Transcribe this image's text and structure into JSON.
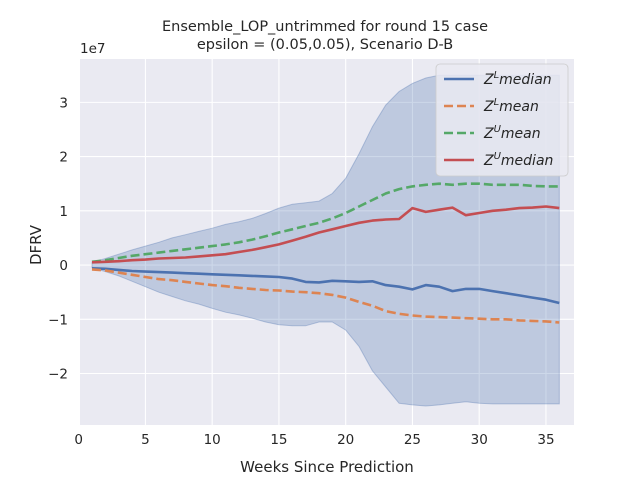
{
  "chart_data": {
    "type": "line",
    "title": "Ensemble_LOP_untrimmed for round 15 case",
    "subtitle": "epsilon = (0.05,0.05), Scenario D-B",
    "xlabel": "Weeks Since Prediction",
    "ylabel": "DFRV",
    "scale_label": "1e7",
    "xlim": [
      0.1,
      37.1
    ],
    "ylim": [
      -2.95,
      3.8
    ],
    "x_ticks": [
      0,
      5,
      10,
      15,
      20,
      25,
      30,
      35
    ],
    "y_ticks": [
      -2,
      -1,
      0,
      1,
      2,
      3
    ],
    "y_tick_labels": [
      "−2",
      "−1",
      "0",
      "1",
      "2",
      "3"
    ],
    "grid": true,
    "legend_position": "top-right",
    "x": [
      1,
      2,
      3,
      4,
      5,
      6,
      7,
      8,
      9,
      10,
      11,
      12,
      13,
      14,
      15,
      16,
      17,
      18,
      19,
      20,
      21,
      22,
      23,
      24,
      25,
      26,
      27,
      28,
      29,
      30,
      31,
      32,
      33,
      34,
      35,
      36
    ],
    "band": {
      "color": "#4c72b0",
      "upper": [
        0.05,
        0.12,
        0.2,
        0.28,
        0.35,
        0.42,
        0.5,
        0.56,
        0.62,
        0.68,
        0.75,
        0.8,
        0.86,
        0.95,
        1.05,
        1.12,
        1.15,
        1.18,
        1.32,
        1.6,
        2.05,
        2.55,
        2.95,
        3.2,
        3.35,
        3.45,
        3.5,
        3.5,
        3.5,
        3.5,
        3.5,
        3.5,
        3.5,
        3.5,
        3.5,
        3.5
      ],
      "lower": [
        -0.05,
        -0.12,
        -0.2,
        -0.3,
        -0.4,
        -0.5,
        -0.58,
        -0.66,
        -0.72,
        -0.8,
        -0.87,
        -0.92,
        -0.98,
        -1.05,
        -1.1,
        -1.12,
        -1.12,
        -1.05,
        -1.05,
        -1.2,
        -1.5,
        -1.95,
        -2.25,
        -2.55,
        -2.58,
        -2.6,
        -2.58,
        -2.55,
        -2.52,
        -2.55,
        -2.56,
        -2.56,
        -2.56,
        -2.56,
        -2.56,
        -2.56
      ]
    },
    "series": [
      {
        "name": "Z^L median",
        "base": "Z",
        "sup": "L",
        "suffix": "median",
        "color": "#4c72b0",
        "dashed": false,
        "values": [
          -0.06,
          -0.07,
          -0.09,
          -0.11,
          -0.12,
          -0.13,
          -0.14,
          -0.15,
          -0.16,
          -0.17,
          -0.18,
          -0.19,
          -0.2,
          -0.21,
          -0.22,
          -0.25,
          -0.31,
          -0.32,
          -0.29,
          -0.3,
          -0.31,
          -0.3,
          -0.37,
          -0.4,
          -0.45,
          -0.37,
          -0.4,
          -0.48,
          -0.44,
          -0.44,
          -0.48,
          -0.52,
          -0.56,
          -0.6,
          -0.64,
          -0.7
        ]
      },
      {
        "name": "Z^L mean",
        "base": "Z",
        "sup": "L",
        "suffix": "mean",
        "color": "#dd8452",
        "dashed": true,
        "values": [
          -0.08,
          -0.1,
          -0.14,
          -0.18,
          -0.22,
          -0.26,
          -0.28,
          -0.31,
          -0.34,
          -0.37,
          -0.39,
          -0.42,
          -0.44,
          -0.46,
          -0.47,
          -0.49,
          -0.5,
          -0.52,
          -0.55,
          -0.6,
          -0.68,
          -0.75,
          -0.85,
          -0.9,
          -0.93,
          -0.95,
          -0.96,
          -0.97,
          -0.98,
          -0.99,
          -1.0,
          -1.0,
          -1.02,
          -1.03,
          -1.04,
          -1.06
        ]
      },
      {
        "name": "Z^U mean",
        "base": "Z",
        "sup": "U",
        "suffix": "mean",
        "color": "#55a868",
        "dashed": true,
        "values": [
          0.06,
          0.09,
          0.13,
          0.17,
          0.2,
          0.23,
          0.26,
          0.29,
          0.32,
          0.35,
          0.38,
          0.42,
          0.47,
          0.53,
          0.6,
          0.66,
          0.72,
          0.78,
          0.86,
          0.96,
          1.08,
          1.2,
          1.32,
          1.4,
          1.45,
          1.48,
          1.5,
          1.48,
          1.5,
          1.5,
          1.48,
          1.48,
          1.48,
          1.46,
          1.45,
          1.45
        ]
      },
      {
        "name": "Z^U median",
        "base": "Z",
        "sup": "U",
        "suffix": "median",
        "color": "#c44e52",
        "dashed": false,
        "values": [
          0.05,
          0.06,
          0.07,
          0.09,
          0.1,
          0.12,
          0.13,
          0.14,
          0.16,
          0.18,
          0.2,
          0.24,
          0.28,
          0.33,
          0.38,
          0.45,
          0.52,
          0.6,
          0.66,
          0.72,
          0.78,
          0.82,
          0.84,
          0.85,
          1.05,
          0.98,
          1.02,
          1.06,
          0.92,
          0.96,
          1.0,
          1.02,
          1.05,
          1.06,
          1.08,
          1.05
        ]
      }
    ]
  }
}
